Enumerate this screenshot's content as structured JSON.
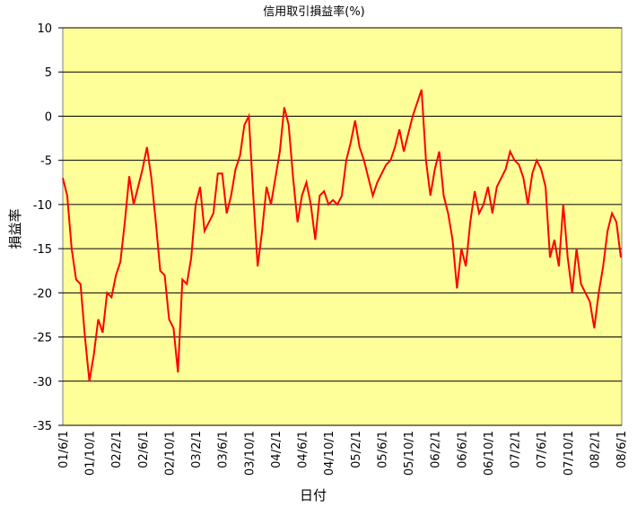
{
  "chart_data": {
    "type": "line",
    "title": "信用取引損益率(%)",
    "x_label": "日付",
    "y_label": "損益率",
    "categories": [
      "01/6/1",
      null,
      null,
      null,
      null,
      null,
      "01/10/1",
      null,
      null,
      null,
      null,
      null,
      "02/2/1",
      null,
      null,
      null,
      null,
      null,
      "02/6/1",
      null,
      null,
      null,
      null,
      null,
      "02/10/1",
      null,
      null,
      null,
      null,
      null,
      "03/2/1",
      null,
      null,
      null,
      null,
      null,
      "03/6/1",
      null,
      null,
      null,
      null,
      null,
      "03/10/1",
      null,
      null,
      null,
      null,
      null,
      "04/2/1",
      null,
      null,
      null,
      null,
      null,
      "04/6/1",
      null,
      null,
      null,
      null,
      null,
      "04/10/1",
      null,
      null,
      null,
      null,
      null,
      "05/2/1",
      null,
      null,
      null,
      null,
      null,
      "05/6/1",
      null,
      null,
      null,
      null,
      null,
      "05/10/1",
      null,
      null,
      null,
      null,
      null,
      "06/2/1",
      null,
      null,
      null,
      null,
      null,
      "06/6/1",
      null,
      null,
      null,
      null,
      null,
      "06/10/1",
      null,
      null,
      null,
      null,
      null,
      "07/2/1",
      null,
      null,
      null,
      null,
      null,
      "07/6/1",
      null,
      null,
      null,
      null,
      null,
      "07/10/1",
      null,
      null,
      null,
      null,
      null,
      "08/2/1",
      null,
      null,
      null,
      null,
      null,
      "08/6/1"
    ],
    "series": [
      {
        "name": "損益率",
        "color": "#ff0000",
        "values": [
          -7,
          -9,
          -15,
          -18.5,
          -19,
          -25,
          -30,
          -27,
          -23,
          -24.5,
          -20,
          -20.5,
          -18,
          -16.5,
          -12,
          -6.8,
          -10,
          -8,
          -6,
          -3.5,
          -7,
          -12,
          -17.5,
          -18,
          -23,
          -24,
          -29,
          -18.5,
          -19,
          -16,
          -10,
          -8,
          -13,
          -12,
          -11,
          -6.5,
          -6.5,
          -11,
          -9,
          -6,
          -4.5,
          -1,
          0,
          -9,
          -17,
          -13,
          -8,
          -10,
          -7,
          -4,
          1,
          -1,
          -7,
          -12,
          -9,
          -7.5,
          -10,
          -14,
          -9,
          -8.5,
          -10,
          -9.5,
          -10,
          -9,
          -5,
          -3,
          -0.5,
          -3.5,
          -5,
          -7,
          -9,
          -7.5,
          -6.5,
          -5.5,
          -5,
          -3.5,
          -1.5,
          -4,
          -2,
          0,
          1.5,
          3,
          -5,
          -9,
          -6,
          -4,
          -9,
          -11,
          -14,
          -19.5,
          -15,
          -17,
          -12,
          -8.5,
          -11,
          -10,
          -8,
          -11,
          -8,
          -7,
          -6,
          -4,
          -5,
          -5.5,
          -7,
          -10,
          -6.5,
          -5,
          -6,
          -8,
          -16,
          -14,
          -17,
          -10,
          -16,
          -20,
          -15,
          -19,
          -20,
          -21,
          -24,
          -20,
          -17,
          -13,
          -11,
          -12,
          -16
        ]
      }
    ],
    "ylim": [
      -35,
      10
    ],
    "yticks": [
      -35,
      -30,
      -25,
      -20,
      -15,
      -10,
      -5,
      0,
      5,
      10
    ],
    "grid": true,
    "plot_background": "#ffff99"
  }
}
